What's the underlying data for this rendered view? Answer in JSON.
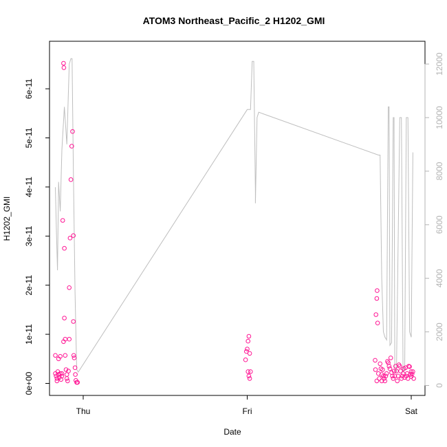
{
  "chart_data": {
    "type": "scatter",
    "title": "ATOM3 Northeast_Pacific_2 H1202_GMI",
    "xlabel": "Date",
    "ylabel": "H1202_GMI",
    "x_ticks": [
      "Thu",
      "Fri",
      "Sat"
    ],
    "x_range_days": [
      -0.2,
      2.04
    ],
    "y_left": {
      "lim": [
        0,
        6.6e-11
      ],
      "ticks": [
        0,
        1e-11,
        2e-11,
        3e-11,
        4e-11,
        5e-11,
        6e-11
      ],
      "tick_labels": [
        "0e+00",
        "1e-11",
        "2e-11",
        "3e-11",
        "4e-11",
        "5e-11",
        "6e-11"
      ]
    },
    "y_right": {
      "lim": [
        0,
        12500
      ],
      "ticks": [
        0,
        2000,
        4000,
        6000,
        8000,
        10000,
        12000
      ],
      "tick_labels": [
        "0",
        "2000",
        "4000",
        "6000",
        "8000",
        "10000",
        "12000"
      ]
    },
    "grid": false,
    "legend": "none",
    "colors": {
      "points": "#ff1493",
      "altitude": "#bebebe",
      "right_axis": "#b3b3b3"
    },
    "series": [
      {
        "axis": "left",
        "style": "points",
        "points": [
          [
            -0.17,
            5.7e-12
          ],
          [
            -0.17,
            2e-12
          ],
          [
            -0.165,
            1.5e-12
          ],
          [
            -0.16,
            1e-12
          ],
          [
            -0.16,
            5e-13
          ],
          [
            -0.155,
            2.4e-12
          ],
          [
            -0.15,
            5e-12
          ],
          [
            -0.15,
            1.8e-12
          ],
          [
            -0.145,
            1.2e-12
          ],
          [
            -0.14,
            5.5e-12
          ],
          [
            -0.14,
            2e-12
          ],
          [
            -0.135,
            8e-13
          ],
          [
            -0.13,
            1.5e-12
          ],
          [
            -0.13,
            2e-12
          ],
          [
            -0.125,
            3.32e-11
          ],
          [
            -0.12,
            6.52e-11
          ],
          [
            -0.118,
            6.43e-11
          ],
          [
            -0.12,
            8.5e-12
          ],
          [
            -0.115,
            2.75e-11
          ],
          [
            -0.115,
            1.33e-11
          ],
          [
            -0.11,
            9e-12
          ],
          [
            -0.11,
            5.7e-12
          ],
          [
            -0.105,
            2.8e-12
          ],
          [
            -0.1,
            1.8e-12
          ],
          [
            -0.1,
            1e-12
          ],
          [
            -0.095,
            5e-13
          ],
          [
            -0.09,
            2.5e-12
          ],
          [
            -0.085,
            1.95e-11
          ],
          [
            -0.085,
            9e-12
          ],
          [
            -0.08,
            2.96e-11
          ],
          [
            -0.075,
            4.15e-11
          ],
          [
            -0.07,
            4.83e-11
          ],
          [
            -0.065,
            5.13e-11
          ],
          [
            -0.06,
            3.01e-11
          ],
          [
            -0.06,
            1.26e-11
          ],
          [
            -0.058,
            5.7e-12
          ],
          [
            -0.055,
            5.2e-12
          ],
          [
            -0.05,
            3.2e-12
          ],
          [
            -0.048,
            1.8e-12
          ],
          [
            -0.045,
            6e-13
          ],
          [
            -0.04,
            2e-13
          ],
          [
            -0.035,
            2e-13
          ],
          [
            0.99,
            4.8e-12
          ],
          [
            0.995,
            6.5e-12
          ],
          [
            1.0,
            7e-12
          ],
          [
            1.005,
            8.6e-12
          ],
          [
            1.01,
            9.6e-12
          ],
          [
            1.015,
            6.1e-12
          ],
          [
            1.005,
            2.4e-12
          ],
          [
            1.01,
            1.5e-12
          ],
          [
            1.015,
            1e-12
          ],
          [
            1.02,
            2.4e-12
          ],
          [
            1.78,
            4.7e-12
          ],
          [
            1.782,
            2.8e-12
          ],
          [
            1.785,
            1.4e-11
          ],
          [
            1.79,
            1.73e-11
          ],
          [
            1.792,
            1.89e-11
          ],
          [
            1.795,
            1.23e-11
          ],
          [
            1.79,
            5e-13
          ],
          [
            1.8,
            2e-12
          ],
          [
            1.805,
            1e-12
          ],
          [
            1.81,
            4e-12
          ],
          [
            1.815,
            3e-12
          ],
          [
            1.82,
            5e-13
          ],
          [
            1.82,
            1.8e-12
          ],
          [
            1.825,
            2.8e-12
          ],
          [
            1.83,
            1.5e-12
          ],
          [
            1.835,
            1e-12
          ],
          [
            1.84,
            5e-13
          ],
          [
            1.845,
            1.5e-12
          ],
          [
            1.85,
            2e-12
          ],
          [
            1.855,
            4.5e-12
          ],
          [
            1.86,
            4.2e-12
          ],
          [
            1.865,
            3.5e-12
          ],
          [
            1.87,
            3e-12
          ],
          [
            1.875,
            5.2e-12
          ],
          [
            1.88,
            2.2e-12
          ],
          [
            1.885,
            1.5e-12
          ],
          [
            1.89,
            1e-12
          ],
          [
            1.895,
            2.5e-12
          ],
          [
            1.9,
            1.5e-12
          ],
          [
            1.905,
            3.5e-12
          ],
          [
            1.91,
            2.5e-12
          ],
          [
            1.915,
            5e-13
          ],
          [
            1.92,
            1.5e-12
          ],
          [
            1.925,
            3.8e-12
          ],
          [
            1.93,
            3.5e-12
          ],
          [
            1.935,
            2.5e-12
          ],
          [
            1.94,
            1e-12
          ],
          [
            1.945,
            1.5e-12
          ],
          [
            1.95,
            2e-12
          ],
          [
            1.955,
            3e-12
          ],
          [
            1.96,
            1.2e-12
          ],
          [
            1.965,
            3.2e-12
          ],
          [
            1.97,
            1.5e-12
          ],
          [
            1.975,
            2e-12
          ],
          [
            1.98,
            1e-12
          ],
          [
            1.985,
            3.5e-12
          ],
          [
            1.99,
            3.4e-12
          ],
          [
            1.995,
            1.8e-12
          ],
          [
            2.0,
            2.4e-12
          ],
          [
            2.0,
            1.4e-12
          ],
          [
            2.005,
            1.9e-12
          ],
          [
            2.01,
            2.4e-12
          ],
          [
            2.015,
            1e-12
          ]
        ]
      },
      {
        "axis": "right",
        "style": "line",
        "points": [
          [
            -0.17,
            7400
          ],
          [
            -0.163,
            5700
          ],
          [
            -0.157,
            4300
          ],
          [
            -0.15,
            7600
          ],
          [
            -0.14,
            6500
          ],
          [
            -0.13,
            8800
          ],
          [
            -0.115,
            10400
          ],
          [
            -0.1,
            9000
          ],
          [
            -0.085,
            12000
          ],
          [
            -0.075,
            12200
          ],
          [
            -0.068,
            12200
          ],
          [
            -0.06,
            8000
          ],
          [
            -0.05,
            3500
          ],
          [
            -0.04,
            600
          ],
          [
            -0.03,
            500
          ],
          [
            1.0,
            10300
          ],
          [
            1.02,
            10300
          ],
          [
            1.03,
            12100
          ],
          [
            1.04,
            12100
          ],
          [
            1.05,
            7200
          ],
          [
            1.05,
            6800
          ],
          [
            1.06,
            10000
          ],
          [
            1.07,
            10200
          ],
          [
            1.8,
            8600
          ],
          [
            1.81,
            8600
          ],
          [
            1.82,
            4000
          ],
          [
            1.83,
            2000
          ],
          [
            1.84,
            1800
          ],
          [
            1.85,
            1700
          ],
          [
            1.86,
            10400
          ],
          [
            1.865,
            10400
          ],
          [
            1.87,
            1500
          ],
          [
            1.88,
            1600
          ],
          [
            1.89,
            10000
          ],
          [
            1.895,
            10000
          ],
          [
            1.9,
            500
          ],
          [
            1.91,
            500
          ],
          [
            1.93,
            10000
          ],
          [
            1.94,
            10000
          ],
          [
            1.95,
            500
          ],
          [
            1.96,
            600
          ],
          [
            1.97,
            10000
          ],
          [
            1.98,
            10000
          ],
          [
            1.99,
            2000
          ],
          [
            2.0,
            1800
          ],
          [
            2.01,
            8700
          ]
        ]
      }
    ]
  }
}
